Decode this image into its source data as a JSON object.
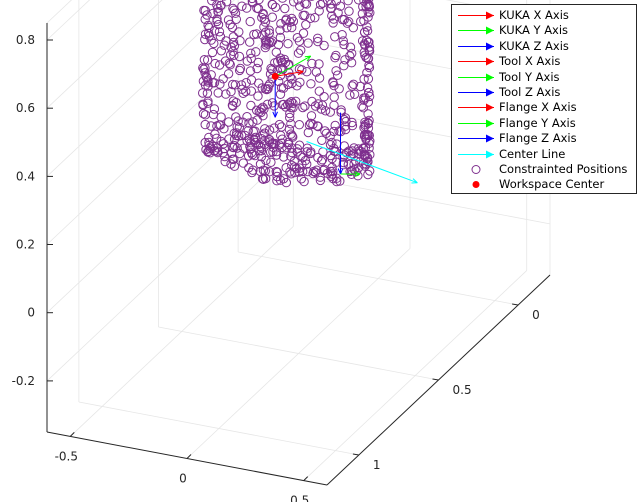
{
  "chart_data": {
    "type": "scatter3d",
    "title": "",
    "xlabel": "",
    "ylabel": "",
    "zlabel": "",
    "xlim": [
      -0.6,
      0.6
    ],
    "ylim": [
      -0.2,
      1.2
    ],
    "zlim": [
      -0.35,
      0.85
    ],
    "x_ticks": [
      "-0.5",
      "0",
      "0.5"
    ],
    "y_ticks": [
      "0",
      "0.5",
      "1"
    ],
    "z_ticks": [
      "-0.2",
      "0",
      "0.2",
      "0.4",
      "0.6",
      "0.8"
    ],
    "grid": true,
    "legend_position": "top-right",
    "legend": [
      {
        "label": "KUKA X Axis",
        "kind": "arrow",
        "color": "#ff0000"
      },
      {
        "label": "KUKA Y Axis",
        "kind": "arrow",
        "color": "#00ff00"
      },
      {
        "label": "KUKA Z Axis",
        "kind": "arrow",
        "color": "#0000ff"
      },
      {
        "label": "Tool X Axis",
        "kind": "arrow",
        "color": "#ff0000"
      },
      {
        "label": "Tool Y Axis",
        "kind": "arrow",
        "color": "#00ff00"
      },
      {
        "label": "Tool Z Axis",
        "kind": "arrow",
        "color": "#0000ff"
      },
      {
        "label": "Flange X Axis",
        "kind": "arrow",
        "color": "#ff0000"
      },
      {
        "label": "Flange Y Axis",
        "kind": "arrow",
        "color": "#00ff00"
      },
      {
        "label": "Flange Z Axis",
        "kind": "arrow",
        "color": "#0000ff"
      },
      {
        "label": "Center Line",
        "kind": "arrow",
        "color": "#00ffff"
      },
      {
        "label": "Constrainted Positions",
        "kind": "circle",
        "color": "#7e2f8e"
      },
      {
        "label": "Workspace Center",
        "kind": "dot",
        "color": "#ff0000"
      }
    ],
    "workspace": {
      "shape": "annular-sector-shell",
      "center_xy": [
        0.0,
        0.0
      ],
      "inner_radius": 0.55,
      "outer_radius": 0.9,
      "angle_range_deg": [
        50,
        130
      ],
      "z_range": [
        0.25,
        0.8
      ]
    },
    "workspace_center": [
      -0.1,
      0.5,
      0.45
    ],
    "center_line": {
      "from": [
        0.0,
        0.45,
        0.25
      ],
      "to": [
        0.1,
        -0.1,
        -0.1
      ]
    },
    "constrained_positions_count": 900,
    "marker_color": "#7e2f8e"
  }
}
